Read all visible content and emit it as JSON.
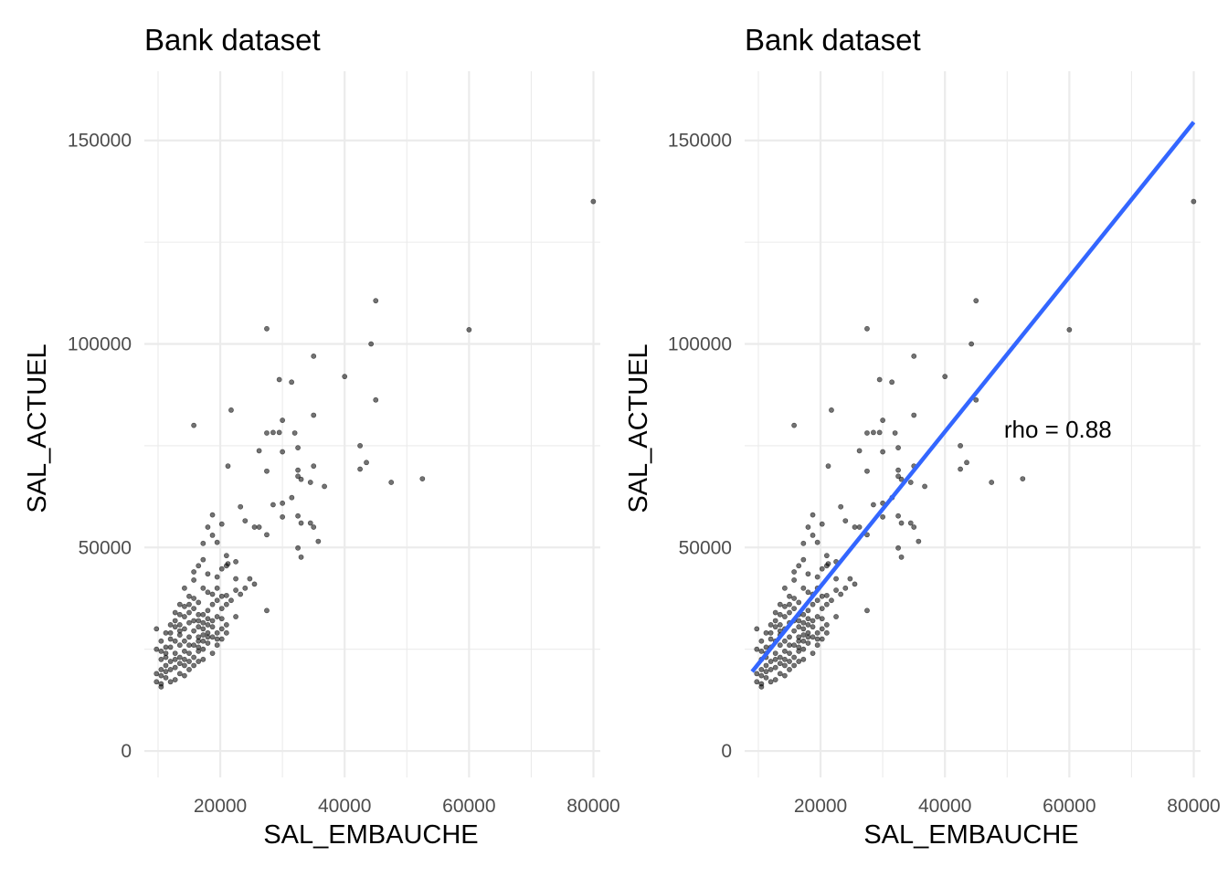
{
  "chart_data": [
    {
      "type": "scatter",
      "title": "Bank dataset",
      "xlabel": "SAL_EMBAUCHE",
      "ylabel": "SAL_ACTUEL",
      "xlim": [
        7800,
        81100
      ],
      "ylim": [
        -6500,
        167000
      ],
      "xticks": [
        20000,
        40000,
        60000,
        80000
      ],
      "yticks": [
        0,
        50000,
        100000,
        150000
      ],
      "grid": true,
      "points": [
        [
          79980,
          135000
        ],
        [
          45000,
          110625
        ],
        [
          60000,
          103500
        ],
        [
          27480,
          103750
        ],
        [
          44250,
          100000
        ],
        [
          35010,
          97000
        ],
        [
          40000,
          92000
        ],
        [
          29490,
          91250
        ],
        [
          31470,
          90625
        ],
        [
          45000,
          86250
        ],
        [
          21750,
          83750
        ],
        [
          35010,
          82500
        ],
        [
          30000,
          81250
        ],
        [
          15750,
          80000
        ],
        [
          28500,
          78250
        ],
        [
          27480,
          78125
        ],
        [
          29490,
          78250
        ],
        [
          31980,
          78125
        ],
        [
          42480,
          75000
        ],
        [
          26250,
          73750
        ],
        [
          32490,
          74500
        ],
        [
          30000,
          73500
        ],
        [
          43500,
          70875
        ],
        [
          27480,
          68750
        ],
        [
          21240,
          70000
        ],
        [
          32490,
          69000
        ],
        [
          35010,
          70000
        ],
        [
          42480,
          69250
        ],
        [
          32490,
          67500
        ],
        [
          33000,
          66750
        ],
        [
          47490,
          66000
        ],
        [
          52500,
          66875
        ],
        [
          34500,
          66000
        ],
        [
          36750,
          65000
        ],
        [
          30000,
          60875
        ],
        [
          31500,
          62250
        ],
        [
          23250,
          60000
        ],
        [
          28500,
          60500
        ],
        [
          26250,
          55000
        ],
        [
          24000,
          56550
        ],
        [
          25500,
          55000
        ],
        [
          27480,
          53125
        ],
        [
          30000,
          57500
        ],
        [
          32490,
          57750
        ],
        [
          33000,
          56000
        ],
        [
          34500,
          56000
        ],
        [
          35010,
          55000
        ],
        [
          35760,
          51500
        ],
        [
          32490,
          49875
        ],
        [
          33000,
          47625
        ],
        [
          20250,
          55750
        ],
        [
          18750,
          58000
        ],
        [
          18000,
          55000
        ],
        [
          18750,
          53000
        ],
        [
          19500,
          51250
        ],
        [
          17250,
          51000
        ],
        [
          21000,
          48000
        ],
        [
          21240,
          46000
        ],
        [
          21000,
          45500
        ],
        [
          22500,
          46500
        ],
        [
          20250,
          44750
        ],
        [
          16500,
          45500
        ],
        [
          15750,
          42000
        ],
        [
          17250,
          47000
        ],
        [
          18000,
          43500
        ],
        [
          19500,
          42750
        ],
        [
          22500,
          42300
        ],
        [
          24000,
          40000
        ],
        [
          25500,
          41000
        ],
        [
          24750,
          42300
        ],
        [
          23250,
          38500
        ],
        [
          17250,
          40000
        ],
        [
          18000,
          39000
        ],
        [
          19500,
          40000
        ],
        [
          21000,
          38200
        ],
        [
          27480,
          34500
        ],
        [
          22500,
          33000
        ],
        [
          21000,
          36000
        ],
        [
          20250,
          35000
        ],
        [
          19500,
          33000
        ],
        [
          18750,
          32000
        ],
        [
          18000,
          31000
        ],
        [
          17250,
          30000
        ],
        [
          16500,
          32000
        ],
        [
          15750,
          35000
        ],
        [
          15000,
          38000
        ],
        [
          14250,
          40000
        ],
        [
          15750,
          44000
        ],
        [
          13500,
          36000
        ],
        [
          12750,
          34000
        ],
        [
          12000,
          31000
        ],
        [
          11250,
          29000
        ],
        [
          10500,
          27000
        ],
        [
          9750,
          30000
        ],
        [
          9750,
          25000
        ],
        [
          10500,
          22500
        ],
        [
          11250,
          24000
        ],
        [
          12000,
          22000
        ],
        [
          12750,
          20500
        ],
        [
          13500,
          23000
        ],
        [
          14250,
          21000
        ],
        [
          15000,
          24000
        ],
        [
          15750,
          26000
        ],
        [
          16500,
          28000
        ],
        [
          17250,
          25000
        ],
        [
          18000,
          26500
        ],
        [
          18750,
          24000
        ],
        [
          16500,
          22000
        ],
        [
          15000,
          20000
        ],
        [
          14250,
          18500
        ],
        [
          13500,
          19000
        ],
        [
          12750,
          17500
        ],
        [
          12000,
          17000
        ],
        [
          11250,
          18000
        ],
        [
          10500,
          16500
        ],
        [
          10500,
          15750
        ],
        [
          9750,
          17000
        ],
        [
          9750,
          19000
        ],
        [
          10500,
          20000
        ],
        [
          11250,
          21000
        ],
        [
          12000,
          25500
        ],
        [
          12750,
          27000
        ],
        [
          13500,
          28500
        ],
        [
          14250,
          30000
        ],
        [
          15000,
          31500
        ],
        [
          15750,
          29500
        ],
        [
          16500,
          27000
        ],
        [
          17250,
          28500
        ],
        [
          18000,
          29000
        ],
        [
          18750,
          30500
        ],
        [
          19500,
          27500
        ],
        [
          20250,
          30000
        ],
        [
          21000,
          29000
        ],
        [
          15000,
          26000
        ],
        [
          14250,
          24500
        ],
        [
          13500,
          26000
        ],
        [
          12750,
          24000
        ],
        [
          12000,
          27500
        ],
        [
          11250,
          25500
        ],
        [
          10500,
          24500
        ],
        [
          15750,
          23000
        ],
        [
          16500,
          24500
        ],
        [
          17250,
          22500
        ],
        [
          14250,
          27000
        ],
        [
          13500,
          31000
        ],
        [
          12750,
          30500
        ],
        [
          15000,
          28000
        ],
        [
          15750,
          32000
        ],
        [
          16500,
          30500
        ],
        [
          17250,
          33500
        ],
        [
          18000,
          34500
        ],
        [
          14250,
          33000
        ],
        [
          15000,
          34000
        ],
        [
          13500,
          29500
        ],
        [
          12000,
          29000
        ],
        [
          12750,
          22500
        ],
        [
          11250,
          23000
        ],
        [
          14250,
          22500
        ],
        [
          15000,
          22000
        ],
        [
          15750,
          21000
        ],
        [
          16500,
          25500
        ],
        [
          17250,
          27000
        ],
        [
          18000,
          28000
        ],
        [
          12000,
          20000
        ],
        [
          11250,
          19500
        ],
        [
          10500,
          18500
        ],
        [
          13500,
          21500
        ],
        [
          16500,
          33500
        ],
        [
          17250,
          31500
        ],
        [
          18000,
          32500
        ],
        [
          15000,
          36000
        ],
        [
          15750,
          37500
        ],
        [
          16500,
          36500
        ],
        [
          14250,
          35500
        ],
        [
          13500,
          33500
        ],
        [
          12750,
          32000
        ],
        [
          19500,
          29000
        ],
        [
          20250,
          32500
        ],
        [
          21000,
          31000
        ],
        [
          18750,
          28000
        ],
        [
          19500,
          26000
        ],
        [
          20250,
          27500
        ],
        [
          18750,
          36000
        ],
        [
          19500,
          37000
        ],
        [
          20250,
          38000
        ],
        [
          18750,
          38500
        ],
        [
          21750,
          37000
        ],
        [
          22500,
          39500
        ]
      ]
    },
    {
      "type": "scatter",
      "title": "Bank dataset",
      "xlabel": "SAL_EMBAUCHE",
      "ylabel": "SAL_ACTUEL",
      "xlim": [
        7800,
        81100
      ],
      "ylim": [
        -6500,
        167000
      ],
      "xticks": [
        20000,
        40000,
        60000,
        80000
      ],
      "yticks": [
        0,
        50000,
        100000,
        150000
      ],
      "grid": true,
      "points_same_as_panel": 0,
      "fit_line": {
        "x": [
          9000,
          80000
        ],
        "y": [
          19500,
          154500
        ],
        "color": "#3366ff"
      },
      "annotation": {
        "text": "rho = 0.88",
        "x": 49500,
        "y": 79000
      }
    }
  ]
}
